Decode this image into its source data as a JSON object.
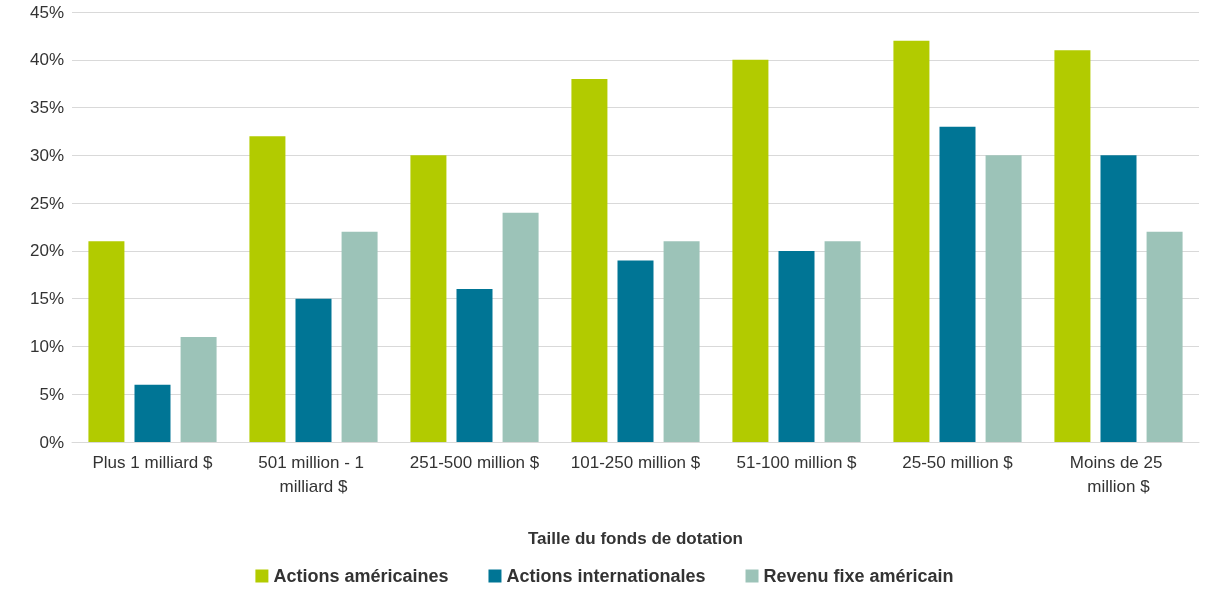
{
  "chart_data": {
    "type": "bar",
    "xlabel": "Taille du fonds de dotation",
    "categories": [
      "Plus 1 milliard $",
      "501 million - 1 milliard $",
      "251-500 million $",
      "101-250 million $",
      "51-100 million $",
      "25-50 million $",
      "Moins de 25 million $"
    ],
    "series": [
      {
        "name": "Actions américaines",
        "color": "#b2cb00",
        "values": [
          21,
          32,
          30,
          38,
          40,
          42,
          41
        ]
      },
      {
        "name": "Actions internationales",
        "color": "#007595",
        "values": [
          6,
          15,
          16,
          19,
          20,
          33,
          30
        ]
      },
      {
        "name": "Revenu fixe américain",
        "color": "#9cc3b8",
        "values": [
          11,
          22,
          24,
          21,
          21,
          30,
          22
        ]
      }
    ],
    "ylim": [
      0,
      45
    ],
    "yticks": [
      {
        "value": 0,
        "label": "0%"
      },
      {
        "value": 5,
        "label": "5%"
      },
      {
        "value": 10,
        "label": "10%"
      },
      {
        "value": 15,
        "label": "15%"
      },
      {
        "value": 20,
        "label": "20%"
      },
      {
        "value": 25,
        "label": "25%"
      },
      {
        "value": 30,
        "label": "30%"
      },
      {
        "value": 35,
        "label": "35%"
      },
      {
        "value": 40,
        "label": "40%"
      },
      {
        "value": 45,
        "label": "45%"
      }
    ],
    "grid": "y",
    "legend": "bottom"
  }
}
